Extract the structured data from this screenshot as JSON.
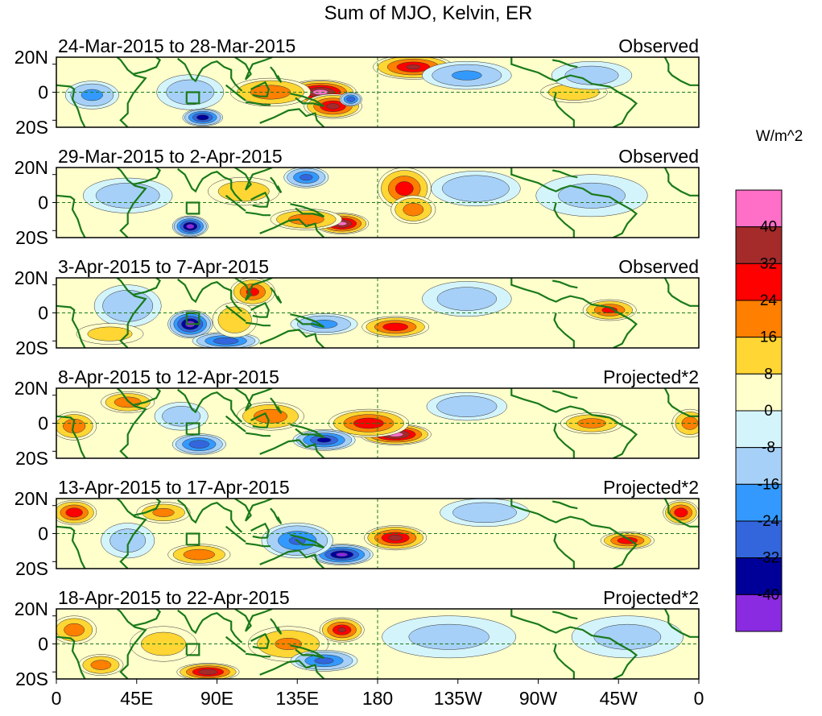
{
  "chart_data": {
    "type": "heatmap",
    "title": "Sum of MJO, Kelvin, ER",
    "units": "W/m^2",
    "x_ticks": [
      "0",
      "45E",
      "90E",
      "135E",
      "180",
      "135W",
      "90W",
      "45W",
      "0"
    ],
    "x_range_lon": [
      0,
      360
    ],
    "y_ticks": [
      "20N",
      "0",
      "20S"
    ],
    "y_range_lat": [
      -25,
      25
    ],
    "colorbar": {
      "labels": [
        "40",
        "32",
        "24",
        "16",
        "8",
        "0",
        "-8",
        "-16",
        "-24",
        "-32",
        "-40"
      ],
      "colors": [
        "#ff6ec7",
        "#a52a2a",
        "#ff0000",
        "#ff7f00",
        "#ffd633",
        "#ffffcc",
        "#d4f4fb",
        "#a6d0f7",
        "#3399ff",
        "#3366dd",
        "#000099",
        "#8a2be2"
      ]
    },
    "panels": [
      {
        "date_range": "24-Mar-2015 to 28-Mar-2015",
        "label": "Observed",
        "anomalies": [
          {
            "lon": 148,
            "lat": 0,
            "value": 44,
            "rlon": 16,
            "rlat": 7
          },
          {
            "lon": 155,
            "lat": -10,
            "value": 34,
            "rlon": 13,
            "rlat": 7
          },
          {
            "lon": 120,
            "lat": 0,
            "value": 22,
            "rlon": 18,
            "rlat": 8
          },
          {
            "lon": 200,
            "lat": 18,
            "value": 32,
            "rlon": 18,
            "rlat": 7
          },
          {
            "lon": 290,
            "lat": 0,
            "value": 15,
            "rlon": 15,
            "rlat": 6
          },
          {
            "lon": 82,
            "lat": -18,
            "value": -38,
            "rlon": 9,
            "rlat": 5
          },
          {
            "lon": 20,
            "lat": -2,
            "value": -18,
            "rlon": 12,
            "rlat": 8
          },
          {
            "lon": 75,
            "lat": 0,
            "value": -12,
            "rlon": 15,
            "rlat": 10
          },
          {
            "lon": 165,
            "lat": -5,
            "value": -30,
            "rlon": 5,
            "rlat": 4
          },
          {
            "lon": 230,
            "lat": 12,
            "value": -16,
            "rlon": 20,
            "rlat": 8
          },
          {
            "lon": 300,
            "lat": 12,
            "value": -10,
            "rlon": 18,
            "rlat": 8
          }
        ]
      },
      {
        "date_range": "29-Mar-2015 to 2-Apr-2015",
        "label": "Observed",
        "anomalies": [
          {
            "lon": 160,
            "lat": -15,
            "value": 42,
            "rlon": 12,
            "rlat": 6
          },
          {
            "lon": 140,
            "lat": -12,
            "value": 22,
            "rlon": 16,
            "rlat": 6
          },
          {
            "lon": 195,
            "lat": 10,
            "value": 28,
            "rlon": 12,
            "rlat": 12
          },
          {
            "lon": 200,
            "lat": -5,
            "value": 20,
            "rlon": 10,
            "rlat": 8
          },
          {
            "lon": 105,
            "lat": 8,
            "value": 12,
            "rlon": 16,
            "rlat": 8
          },
          {
            "lon": 75,
            "lat": -17,
            "value": -44,
            "rlon": 8,
            "rlat": 6
          },
          {
            "lon": 140,
            "lat": 18,
            "value": -26,
            "rlon": 10,
            "rlat": 6
          },
          {
            "lon": 40,
            "lat": 5,
            "value": -12,
            "rlon": 20,
            "rlat": 10
          },
          {
            "lon": 235,
            "lat": 10,
            "value": -14,
            "rlon": 20,
            "rlat": 10
          },
          {
            "lon": 300,
            "lat": 5,
            "value": -8,
            "rlon": 25,
            "rlat": 12
          }
        ]
      },
      {
        "date_range": "3-Apr-2015 to 7-Apr-2015",
        "label": "Observed",
        "anomalies": [
          {
            "lon": 75,
            "lat": -8,
            "value": -44,
            "rlon": 10,
            "rlat": 8
          },
          {
            "lon": 95,
            "lat": -20,
            "value": -30,
            "rlon": 15,
            "rlat": 5
          },
          {
            "lon": 40,
            "lat": 5,
            "value": -14,
            "rlon": 15,
            "rlat": 12
          },
          {
            "lon": 110,
            "lat": 15,
            "value": 26,
            "rlon": 10,
            "rlat": 8
          },
          {
            "lon": 100,
            "lat": -5,
            "value": 14,
            "rlon": 10,
            "rlat": 10
          },
          {
            "lon": 190,
            "lat": -10,
            "value": 30,
            "rlon": 15,
            "rlat": 6
          },
          {
            "lon": 150,
            "lat": -8,
            "value": -18,
            "rlon": 15,
            "rlat": 6
          },
          {
            "lon": 310,
            "lat": 2,
            "value": 26,
            "rlon": 12,
            "rlat": 6
          },
          {
            "lon": 230,
            "lat": 10,
            "value": -10,
            "rlon": 20,
            "rlat": 10
          },
          {
            "lon": 30,
            "lat": -15,
            "value": 10,
            "rlon": 15,
            "rlat": 6
          }
        ]
      },
      {
        "date_range": "8-Apr-2015 to 12-Apr-2015",
        "label": "Projected*2",
        "anomalies": [
          {
            "lon": 190,
            "lat": -8,
            "value": 44,
            "rlon": 16,
            "rlat": 6
          },
          {
            "lon": 175,
            "lat": 0,
            "value": 30,
            "rlon": 18,
            "rlat": 8
          },
          {
            "lon": 150,
            "lat": -12,
            "value": -34,
            "rlon": 14,
            "rlat": 6
          },
          {
            "lon": 120,
            "lat": 5,
            "value": 22,
            "rlon": 15,
            "rlat": 8
          },
          {
            "lon": 80,
            "lat": -15,
            "value": -30,
            "rlon": 12,
            "rlat": 6
          },
          {
            "lon": 40,
            "lat": 15,
            "value": 22,
            "rlon": 12,
            "rlat": 6
          },
          {
            "lon": 10,
            "lat": -2,
            "value": 22,
            "rlon": 10,
            "rlat": 8
          },
          {
            "lon": 300,
            "lat": 0,
            "value": 20,
            "rlon": 14,
            "rlat": 6
          },
          {
            "lon": 355,
            "lat": 0,
            "value": 20,
            "rlon": 8,
            "rlat": 8
          },
          {
            "lon": 230,
            "lat": 12,
            "value": -14,
            "rlon": 18,
            "rlat": 8
          },
          {
            "lon": 70,
            "lat": 5,
            "value": -12,
            "rlon": 12,
            "rlat": 8
          }
        ]
      },
      {
        "date_range": "13-Apr-2015 to 17-Apr-2015",
        "label": "Projected*2",
        "anomalies": [
          {
            "lon": 160,
            "lat": -15,
            "value": -42,
            "rlon": 14,
            "rlat": 6
          },
          {
            "lon": 135,
            "lat": -5,
            "value": -24,
            "rlon": 16,
            "rlat": 10
          },
          {
            "lon": 190,
            "lat": -3,
            "value": 34,
            "rlon": 14,
            "rlat": 7
          },
          {
            "lon": 10,
            "lat": 15,
            "value": 30,
            "rlon": 10,
            "rlat": 7
          },
          {
            "lon": 350,
            "lat": 15,
            "value": 30,
            "rlon": 8,
            "rlat": 7
          },
          {
            "lon": 320,
            "lat": -5,
            "value": 30,
            "rlon": 12,
            "rlat": 5
          },
          {
            "lon": 80,
            "lat": -15,
            "value": 22,
            "rlon": 14,
            "rlat": 6
          },
          {
            "lon": 60,
            "lat": 15,
            "value": 18,
            "rlon": 12,
            "rlat": 6
          },
          {
            "lon": 240,
            "lat": 15,
            "value": -12,
            "rlon": 20,
            "rlat": 8
          },
          {
            "lon": 40,
            "lat": -5,
            "value": -10,
            "rlon": 12,
            "rlat": 10
          }
        ]
      },
      {
        "date_range": "18-Apr-2015 to 22-Apr-2015",
        "label": "Projected*2",
        "anomalies": [
          {
            "lon": 85,
            "lat": -20,
            "value": 38,
            "rlon": 14,
            "rlat": 5
          },
          {
            "lon": 160,
            "lat": 10,
            "value": 32,
            "rlon": 10,
            "rlat": 7
          },
          {
            "lon": 130,
            "lat": 0,
            "value": 16,
            "rlon": 18,
            "rlat": 10
          },
          {
            "lon": 10,
            "lat": 10,
            "value": 20,
            "rlon": 10,
            "rlat": 8
          },
          {
            "lon": 25,
            "lat": -15,
            "value": 20,
            "rlon": 10,
            "rlat": 6
          },
          {
            "lon": 150,
            "lat": -12,
            "value": -26,
            "rlon": 15,
            "rlat": 6
          },
          {
            "lon": 220,
            "lat": 5,
            "value": -8,
            "rlon": 30,
            "rlat": 12
          },
          {
            "lon": 320,
            "lat": 5,
            "value": -8,
            "rlon": 25,
            "rlat": 12
          },
          {
            "lon": 60,
            "lat": 0,
            "value": 10,
            "rlon": 15,
            "rlat": 10
          }
        ]
      }
    ]
  }
}
